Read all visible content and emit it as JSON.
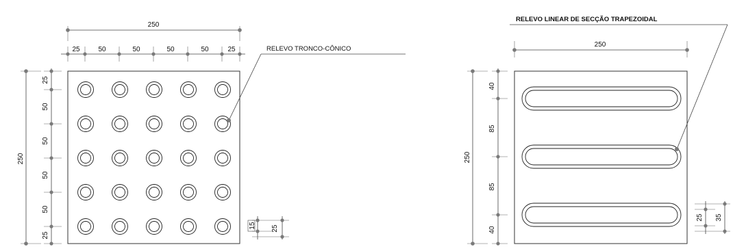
{
  "left_tile": {
    "annotation": "RELEVO TRONCO-CÔNICO",
    "top_total": "250",
    "top_segments": [
      "25",
      "50",
      "50",
      "50",
      "50",
      "25"
    ],
    "left_total": "250",
    "left_segments": [
      "25",
      "50",
      "50",
      "50",
      "50",
      "25"
    ],
    "detail_dims": [
      "15",
      "25"
    ],
    "studs": {
      "rows": 5,
      "cols": 5
    }
  },
  "right_tile": {
    "annotation": "RELEVO LINEAR DE SECÇÃO TRAPEZOIDAL",
    "top_total": "250",
    "left_total": "250",
    "left_segments": [
      "40",
      "85",
      "85",
      "40"
    ],
    "detail_dims": [
      "25",
      "35"
    ],
    "bars": 3
  }
}
